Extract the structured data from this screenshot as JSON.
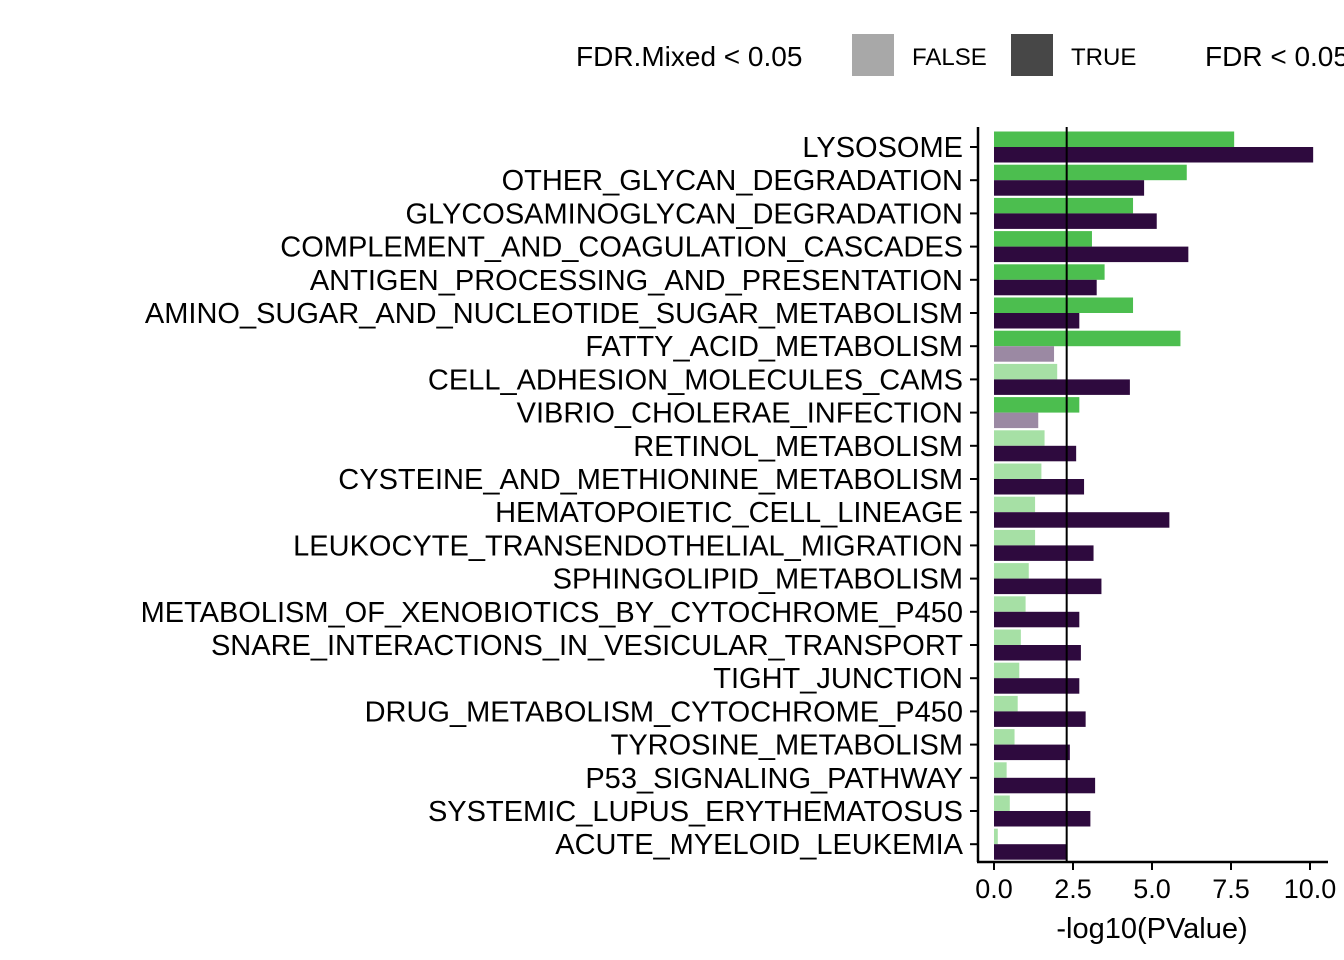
{
  "chart_data": {
    "type": "bar",
    "orientation": "horizontal",
    "xlabel": "-log10(PValue)",
    "ylabel": "",
    "xlim": [
      0,
      10.5
    ],
    "x_ticks": [
      "0.0",
      "2.5",
      "5.0",
      "7.5",
      "10.0"
    ],
    "x_tick_values": [
      0,
      2.5,
      5,
      7.5,
      10
    ],
    "threshold_line": 2.3,
    "grid": false,
    "legend": {
      "placement": "top",
      "groups": [
        {
          "title": "FDR.Mixed < 0.05",
          "entries": [
            {
              "label": "FALSE",
              "color": "#a8a8a8"
            },
            {
              "label": "TRUE",
              "color": "#474747"
            }
          ]
        },
        {
          "title": "FDR < 0.05",
          "entries": []
        }
      ]
    },
    "categories": [
      "LYSOSOME",
      "OTHER_GLYCAN_DEGRADATION",
      "GLYCOSAMINOGLYCAN_DEGRADATION",
      "COMPLEMENT_AND_COAGULATION_CASCADES",
      "ANTIGEN_PROCESSING_AND_PRESENTATION",
      "AMINO_SUGAR_AND_NUCLEOTIDE_SUGAR_METABOLISM",
      "FATTY_ACID_METABOLISM",
      "CELL_ADHESION_MOLECULES_CAMS",
      "VIBRIO_CHOLERAE_INFECTION",
      "RETINOL_METABOLISM",
      "CYSTEINE_AND_METHIONINE_METABOLISM",
      "HEMATOPOIETIC_CELL_LINEAGE",
      "LEUKOCYTE_TRANSENDOTHELIAL_MIGRATION",
      "SPHINGOLIPID_METABOLISM",
      "METABOLISM_OF_XENOBIOTICS_BY_CYTOCHROME_P450",
      "SNARE_INTERACTIONS_IN_VESICULAR_TRANSPORT",
      "TIGHT_JUNCTION",
      "DRUG_METABOLISM_CYTOCHROME_P450",
      "TYROSINE_METABOLISM",
      "P53_SIGNALING_PATHWAY",
      "SYSTEMIC_LUPUS_ERYTHEMATOSUS",
      "ACUTE_MYELOID_LEUKEMIA"
    ],
    "series": [
      {
        "values": [
          7.6,
          6.1,
          4.4,
          3.1,
          3.5,
          4.4,
          5.9,
          2.0,
          2.7,
          1.6,
          1.5,
          1.3,
          1.3,
          1.1,
          1.0,
          0.85,
          0.8,
          0.75,
          0.65,
          0.4,
          0.5,
          0.12
        ],
        "fdr_significant": [
          true,
          true,
          true,
          true,
          true,
          true,
          true,
          false,
          true,
          false,
          false,
          false,
          false,
          false,
          false,
          false,
          false,
          false,
          false,
          false,
          false,
          false
        ],
        "colors": {
          "true": "#4cbe4f",
          "false": "#a6e0a5"
        }
      },
      {
        "values": [
          10.1,
          4.75,
          5.15,
          6.15,
          3.25,
          2.7,
          1.9,
          4.3,
          1.4,
          2.6,
          2.85,
          5.55,
          3.15,
          3.4,
          2.7,
          2.75,
          2.7,
          2.9,
          2.4,
          3.2,
          3.05,
          2.3
        ],
        "fdr_significant": [
          true,
          true,
          true,
          true,
          true,
          true,
          false,
          true,
          false,
          true,
          true,
          true,
          true,
          true,
          true,
          true,
          true,
          true,
          true,
          true,
          true,
          true
        ],
        "colors": {
          "true": "#2e0a3e",
          "false": "#9b89a3"
        }
      }
    ]
  }
}
